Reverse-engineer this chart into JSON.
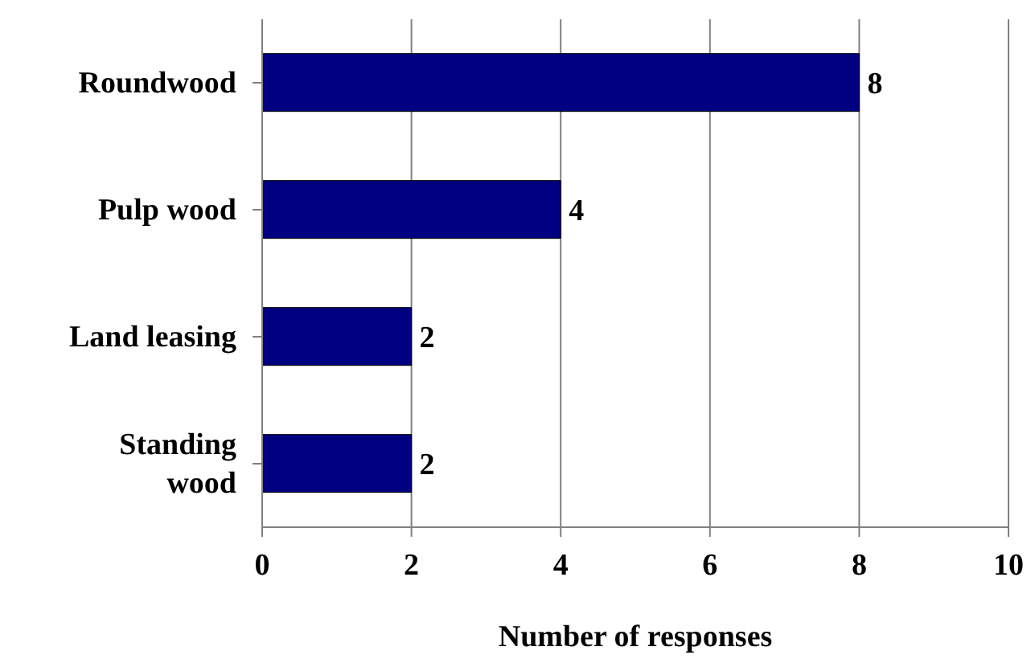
{
  "chart_data": {
    "type": "bar",
    "orientation": "horizontal",
    "categories": [
      "Roundwood",
      "Pulp wood",
      "Land leasing",
      "Standing wood"
    ],
    "values": [
      8,
      4,
      2,
      2
    ],
    "color": "#000080",
    "xlim": [
      0,
      10
    ],
    "xticks": [
      0,
      2,
      4,
      6,
      8,
      10
    ],
    "xlabel": "Number of responses",
    "grid": "x",
    "data_labels": true
  }
}
